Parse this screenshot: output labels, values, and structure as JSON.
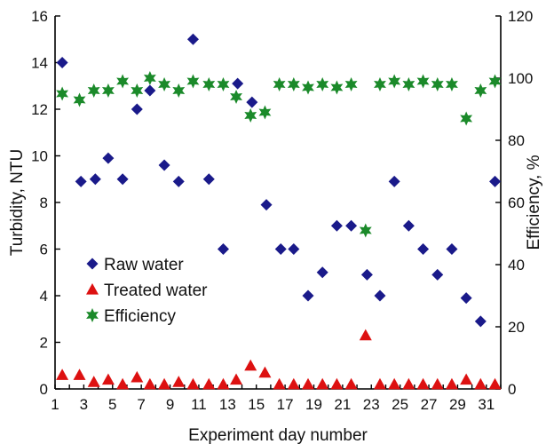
{
  "chart_data": {
    "type": "scatter",
    "xlabel": "Experiment day number",
    "ylabel_left": "Turbidity, NTU",
    "ylabel_right": "Efficiency, %",
    "xlim": [
      1,
      32
    ],
    "ylim_left": [
      0,
      16
    ],
    "ylim_right": [
      0,
      120
    ],
    "x_ticks": [
      1,
      3,
      5,
      7,
      9,
      11,
      13,
      15,
      17,
      19,
      21,
      23,
      25,
      27,
      29,
      31
    ],
    "y_ticks_left": [
      0,
      2,
      4,
      6,
      8,
      10,
      12,
      14,
      16
    ],
    "y_ticks_right": [
      0,
      20,
      40,
      60,
      80,
      100,
      120
    ],
    "legend_position": "left-center",
    "series": [
      {
        "name": "Raw water",
        "axis": "left",
        "marker": "diamond",
        "color": "#1a1a8a",
        "points": [
          [
            1.5,
            14.0
          ],
          [
            2.8,
            8.9
          ],
          [
            3.8,
            9.0
          ],
          [
            4.7,
            9.9
          ],
          [
            5.7,
            9.0
          ],
          [
            6.7,
            12.0
          ],
          [
            7.6,
            12.8
          ],
          [
            8.6,
            9.6
          ],
          [
            9.6,
            8.9
          ],
          [
            10.6,
            15.0
          ],
          [
            11.7,
            9.0
          ],
          [
            12.7,
            6.0
          ],
          [
            13.7,
            13.1
          ],
          [
            14.7,
            12.3
          ],
          [
            15.7,
            7.9
          ],
          [
            16.7,
            6.0
          ],
          [
            17.6,
            6.0
          ],
          [
            18.6,
            4.0
          ],
          [
            19.6,
            5.0
          ],
          [
            20.6,
            7.0
          ],
          [
            21.6,
            7.0
          ],
          [
            22.7,
            4.9
          ],
          [
            23.6,
            4.0
          ],
          [
            24.6,
            8.9
          ],
          [
            25.6,
            7.0
          ],
          [
            26.6,
            6.0
          ],
          [
            27.6,
            4.9
          ],
          [
            28.6,
            6.0
          ],
          [
            29.6,
            3.9
          ],
          [
            30.6,
            2.9
          ],
          [
            31.6,
            8.9
          ]
        ]
      },
      {
        "name": "Treated water",
        "axis": "left",
        "marker": "triangle",
        "color": "#dd1111",
        "points": [
          [
            1.5,
            0.6
          ],
          [
            2.7,
            0.6
          ],
          [
            3.7,
            0.3
          ],
          [
            4.7,
            0.4
          ],
          [
            5.7,
            0.2
          ],
          [
            6.7,
            0.5
          ],
          [
            7.6,
            0.2
          ],
          [
            8.6,
            0.2
          ],
          [
            9.6,
            0.3
          ],
          [
            10.6,
            0.2
          ],
          [
            11.7,
            0.2
          ],
          [
            12.7,
            0.2
          ],
          [
            13.6,
            0.4
          ],
          [
            14.6,
            1.0
          ],
          [
            15.6,
            0.7
          ],
          [
            16.6,
            0.2
          ],
          [
            17.6,
            0.2
          ],
          [
            18.6,
            0.2
          ],
          [
            19.6,
            0.2
          ],
          [
            20.6,
            0.2
          ],
          [
            21.6,
            0.2
          ],
          [
            22.6,
            2.3
          ],
          [
            23.6,
            0.2
          ],
          [
            24.6,
            0.2
          ],
          [
            25.6,
            0.2
          ],
          [
            26.6,
            0.2
          ],
          [
            27.6,
            0.2
          ],
          [
            28.6,
            0.2
          ],
          [
            29.6,
            0.4
          ],
          [
            30.6,
            0.2
          ],
          [
            31.6,
            0.2
          ]
        ]
      },
      {
        "name": "Efficiency",
        "axis": "right",
        "marker": "star",
        "color": "#1b8a2a",
        "points": [
          [
            1.5,
            95
          ],
          [
            2.7,
            93
          ],
          [
            3.7,
            96
          ],
          [
            4.7,
            96
          ],
          [
            5.7,
            99
          ],
          [
            6.7,
            96
          ],
          [
            7.6,
            100
          ],
          [
            8.6,
            98
          ],
          [
            9.6,
            96
          ],
          [
            10.6,
            99
          ],
          [
            11.7,
            98
          ],
          [
            12.7,
            98
          ],
          [
            13.6,
            94
          ],
          [
            14.6,
            88
          ],
          [
            15.6,
            89
          ],
          [
            16.6,
            98
          ],
          [
            17.6,
            98
          ],
          [
            18.6,
            97
          ],
          [
            19.6,
            98
          ],
          [
            20.6,
            97
          ],
          [
            21.6,
            98
          ],
          [
            22.6,
            51
          ],
          [
            23.6,
            98
          ],
          [
            24.6,
            99
          ],
          [
            25.6,
            98
          ],
          [
            26.6,
            99
          ],
          [
            27.6,
            98
          ],
          [
            28.6,
            98
          ],
          [
            29.6,
            87
          ],
          [
            30.6,
            96
          ],
          [
            31.6,
            99
          ]
        ]
      }
    ]
  }
}
